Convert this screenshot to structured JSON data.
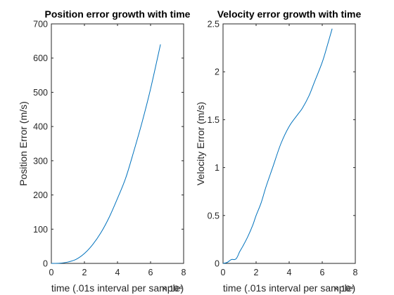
{
  "chart_data": [
    {
      "type": "line",
      "title": "Position error growth with time",
      "xlabel": "time (.01s interval per sample)",
      "ylabel": "Position Error (m/s)",
      "xlim": [
        0,
        80000
      ],
      "ylim": [
        0,
        700
      ],
      "x_ticks": [
        0,
        2,
        4,
        6,
        8
      ],
      "x_tick_labels": [
        "0",
        "2",
        "4",
        "6",
        "8"
      ],
      "x_exponent_label": "× 10⁴",
      "y_ticks": [
        0,
        100,
        200,
        300,
        400,
        500,
        600,
        700
      ],
      "y_tick_labels": [
        "0",
        "100",
        "200",
        "300",
        "400",
        "500",
        "600",
        "700"
      ],
      "grid": false,
      "legend": "none",
      "series": [
        {
          "color": "#0072BD",
          "x": [
            0,
            5000,
            10000,
            15000,
            20000,
            25000,
            30000,
            35000,
            40000,
            45000,
            50000,
            55000,
            60000,
            66000
          ],
          "y": [
            0,
            0.5,
            4,
            12,
            29,
            55,
            90,
            135,
            190,
            250,
            330,
            415,
            510,
            640
          ]
        }
      ]
    },
    {
      "type": "line",
      "title": "Velocity error growth with time",
      "xlabel": "time (.01s interval per sample)",
      "ylabel": "Velocity Error (m/s)",
      "xlim": [
        0,
        80000
      ],
      "ylim": [
        0,
        2.5
      ],
      "x_ticks": [
        0,
        2,
        4,
        6,
        8
      ],
      "x_tick_labels": [
        "0",
        "2",
        "4",
        "6",
        "8"
      ],
      "x_exponent_label": "× 10⁴",
      "y_ticks": [
        0,
        0.5,
        1,
        1.5,
        2,
        2.5
      ],
      "y_tick_labels": [
        "0",
        "0.5",
        "1",
        "1.5",
        "2",
        "2.5"
      ],
      "grid": false,
      "legend": "none",
      "series": [
        {
          "color": "#0072BD",
          "x": [
            0,
            2500,
            5000,
            7000,
            8000,
            9000,
            10000,
            12000,
            15000,
            18000,
            20000,
            23000,
            26000,
            30000,
            35000,
            40000,
            45000,
            48000,
            52000,
            55000,
            60000,
            63000,
            66000
          ],
          "y": [
            0,
            0.01,
            0.04,
            0.04,
            0.05,
            0.08,
            0.12,
            0.18,
            0.28,
            0.4,
            0.5,
            0.63,
            0.8,
            1.0,
            1.25,
            1.43,
            1.55,
            1.62,
            1.75,
            1.88,
            2.1,
            2.27,
            2.45
          ]
        }
      ]
    }
  ]
}
